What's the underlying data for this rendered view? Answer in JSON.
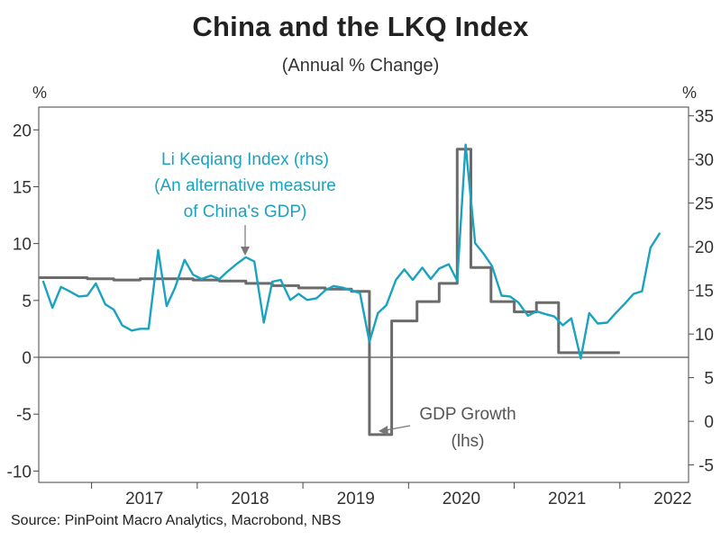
{
  "chart_data": {
    "type": "line",
    "title": "China and the LKQ Index",
    "subtitle": "(Annual % Change)",
    "source": "Source: PinPoint Macro Analytics, Macrobond, NBS",
    "left_axis": {
      "unit": "%",
      "ylim": [
        -11,
        22
      ],
      "ticks": [
        20,
        15,
        10,
        5,
        0,
        -5,
        -10
      ]
    },
    "right_axis": {
      "unit": "%",
      "ylim": [
        -7,
        36
      ],
      "ticks": [
        35,
        30,
        25,
        20,
        15,
        10,
        5,
        0,
        -5
      ]
    },
    "x_range": [
      2016.5,
      2022.65
    ],
    "year_labels": [
      "2017",
      "2018",
      "2019",
      "2020",
      "2021",
      "2022"
    ],
    "zero_line": 0,
    "series": [
      {
        "name": "Li Keqiang Index",
        "axis": "right",
        "color": "#1aa3bf",
        "label_lines": [
          "Li Keqiang Index (rhs)",
          "(An alternative measure",
          "of China's GDP)"
        ],
        "x": [
          2016.54,
          2016.63,
          2016.71,
          2016.79,
          2016.88,
          2016.96,
          2017.04,
          2017.13,
          2017.21,
          2017.29,
          2017.38,
          2017.46,
          2017.54,
          2017.63,
          2017.71,
          2017.79,
          2017.88,
          2017.96,
          2018.04,
          2018.13,
          2018.21,
          2018.29,
          2018.38,
          2018.46,
          2018.54,
          2018.63,
          2018.71,
          2018.79,
          2018.88,
          2018.96,
          2019.04,
          2019.13,
          2019.21,
          2019.29,
          2019.38,
          2019.46,
          2019.54,
          2019.63,
          2019.71,
          2019.79,
          2019.88,
          2019.96,
          2020.04,
          2020.13,
          2020.21,
          2020.29,
          2020.38,
          2020.46,
          2020.54,
          2020.63,
          2020.71,
          2020.79,
          2020.88,
          2020.96,
          2021.04,
          2021.13,
          2021.21,
          2021.29,
          2021.38,
          2021.46,
          2021.54,
          2021.63,
          2021.71,
          2021.79,
          2021.88,
          2021.96,
          2022.04,
          2022.13,
          2022.21,
          2022.29,
          2022.38
        ],
        "values": [
          16.1,
          13.0,
          15.4,
          14.9,
          14.3,
          14.4,
          15.8,
          13.4,
          12.8,
          11.0,
          10.4,
          10.6,
          10.6,
          19.6,
          13.2,
          15.3,
          18.5,
          16.8,
          16.3,
          16.7,
          16.3,
          17.2,
          18.1,
          18.8,
          18.3,
          11.3,
          16.0,
          16.2,
          13.9,
          14.6,
          13.9,
          14.1,
          15.0,
          15.5,
          15.3,
          15.0,
          14.7,
          9.1,
          12.4,
          13.3,
          16.2,
          17.4,
          16.2,
          17.6,
          16.3,
          17.5,
          18.0,
          16.1,
          31.7,
          20.4,
          19.2,
          17.8,
          14.4,
          14.3,
          13.6,
          12.1,
          12.6,
          12.3,
          12.0,
          11.0,
          11.8,
          7.2,
          12.4,
          11.2,
          11.3,
          12.4,
          13.4,
          14.6,
          14.9,
          19.9,
          21.6
        ]
      },
      {
        "name": "GDP Growth",
        "axis": "left",
        "color": "#6b6b6b",
        "label_lines": [
          "GDP Growth",
          "(lhs)"
        ],
        "x": [
          2016.5,
          2016.96,
          2016.96,
          2017.21,
          2017.21,
          2017.46,
          2017.46,
          2017.96,
          2017.96,
          2018.21,
          2018.21,
          2018.46,
          2018.46,
          2018.71,
          2018.71,
          2018.96,
          2018.96,
          2019.21,
          2019.21,
          2019.46,
          2019.46,
          2019.63,
          2019.63,
          2019.84,
          2019.84,
          2020.08,
          2020.08,
          2020.29,
          2020.29,
          2020.46,
          2020.46,
          2020.59,
          2020.59,
          2020.78,
          2020.78,
          2021.0,
          2021.0,
          2021.21,
          2021.21,
          2021.42,
          2021.42,
          2021.63,
          2021.63,
          2021.84,
          2021.84,
          2022.0
        ],
        "values": [
          7.0,
          7.0,
          6.9,
          6.9,
          6.8,
          6.8,
          6.9,
          6.9,
          6.8,
          6.8,
          6.7,
          6.7,
          6.5,
          6.5,
          6.3,
          6.3,
          6.1,
          6.1,
          6.0,
          6.0,
          5.8,
          5.8,
          -6.8,
          -6.8,
          3.2,
          3.2,
          4.9,
          4.9,
          6.5,
          6.5,
          18.3,
          18.3,
          7.9,
          7.9,
          4.9,
          4.9,
          4.0,
          4.0,
          4.8,
          4.8,
          0.4,
          0.4,
          0.4,
          0.4,
          0.4,
          0.4
        ]
      }
    ]
  }
}
